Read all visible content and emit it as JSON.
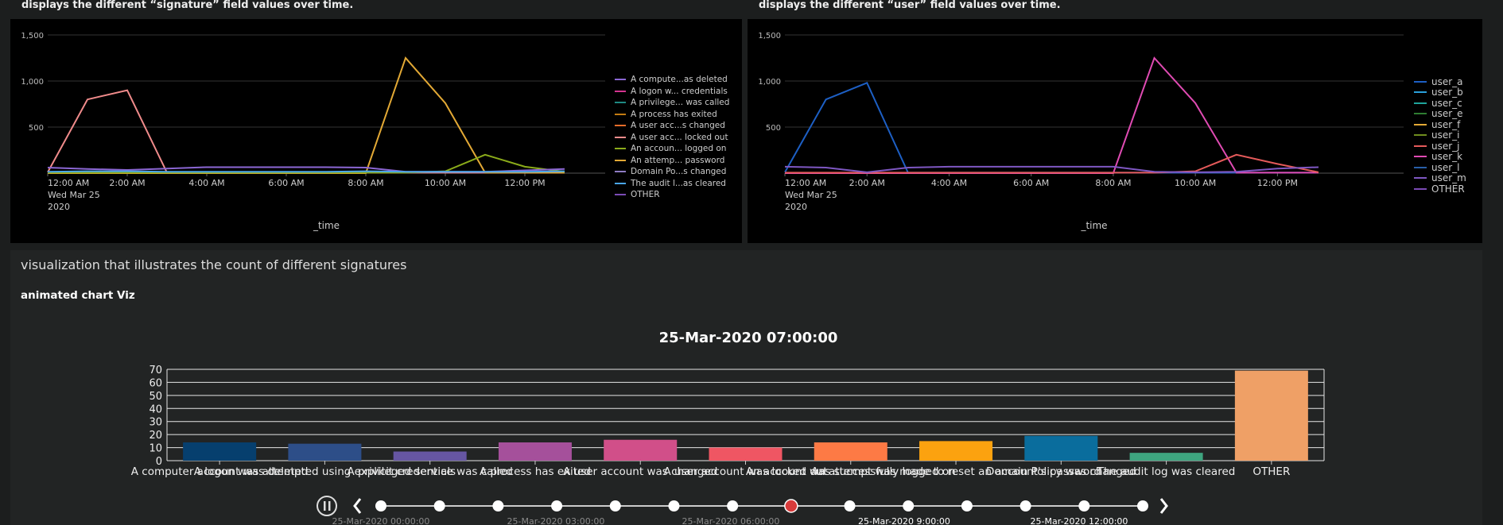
{
  "left_panel": {
    "header": "displays the different “signature” field values over time.",
    "legend": [
      {
        "label": "A compute...as deleted",
        "color": "#8b67d4"
      },
      {
        "label": "A logon w... credentials",
        "color": "#d4348f"
      },
      {
        "label": "A privilege... was called",
        "color": "#1e8a82"
      },
      {
        "label": "A process has exited",
        "color": "#c37c12"
      },
      {
        "label": "A user acc...s changed",
        "color": "#e66c29"
      },
      {
        "label": "A user acc... locked out",
        "color": "#f08b8b"
      },
      {
        "label": "An accoun... logged on",
        "color": "#8bab1a"
      },
      {
        "label": "An attemp... password",
        "color": "#e3a935"
      },
      {
        "label": "Domain Po...s changed",
        "color": "#8e7cc3"
      },
      {
        "label": "The audit l...as cleared",
        "color": "#4aa6e8"
      },
      {
        "label": "OTHER",
        "color": "#7b4bb5"
      }
    ]
  },
  "right_panel": {
    "header": "displays the different “user” field values over time.",
    "legend": [
      {
        "label": "user_a",
        "color": "#1d5fc4"
      },
      {
        "label": "user_b",
        "color": "#2aa0db"
      },
      {
        "label": "user_c",
        "color": "#1fa59c"
      },
      {
        "label": "user_e",
        "color": "#2f7d31"
      },
      {
        "label": "user_f",
        "color": "#e3a935"
      },
      {
        "label": "user_i",
        "color": "#6f8d1e"
      },
      {
        "label": "user_j",
        "color": "#e55a5a"
      },
      {
        "label": "user_k",
        "color": "#e04bb3"
      },
      {
        "label": "user_l",
        "color": "#285fa8"
      },
      {
        "label": "user_m",
        "color": "#7e57c2"
      },
      {
        "label": "OTHER",
        "color": "#7b4bb5"
      }
    ]
  },
  "bottom_panel": {
    "title": "visualization that illustrates the count of different signatures",
    "subtitle": "animated chart Viz",
    "timestamp": "25-Mar-2020 07:00:00",
    "timeline_labels": [
      "25-Mar-2020 00:00:00",
      "25-Mar-2020 03:00:00",
      "25-Mar-2020 06:00:00",
      "25-Mar-2020 9:00:00",
      "25-Mar-2020 12:00:00"
    ],
    "timeline_dot_count": 14,
    "timeline_active_index": 7
  },
  "colors": {
    "accent_red": "#d83b3b"
  },
  "chart_data": [
    {
      "type": "line",
      "x": [
        "12:00 AM",
        "1:00 AM",
        "2:00 AM",
        "3:00 AM",
        "4:00 AM",
        "5:00 AM",
        "6:00 AM",
        "7:00 AM",
        "8:00 AM",
        "9:00 AM",
        "10:00 AM",
        "11:00 AM",
        "12:00 PM",
        "1:00 PM"
      ],
      "x_ticks": [
        "12:00 AM",
        "2:00 AM",
        "4:00 AM",
        "6:00 AM",
        "8:00 AM",
        "10:00 AM",
        "12:00 PM"
      ],
      "x_sub": [
        "Wed Mar 25",
        "2020"
      ],
      "xlabel": "_time",
      "y_ticks": [
        "1,500",
        "1,000",
        "500"
      ],
      "ylim": [
        0,
        1500
      ],
      "series": [
        {
          "name": "A user acc... locked out",
          "values": [
            10,
            800,
            900,
            5,
            5,
            5,
            5,
            5,
            5,
            5,
            5,
            5,
            5,
            5
          ]
        },
        {
          "name": "An attemp... password",
          "values": [
            0,
            0,
            0,
            0,
            0,
            0,
            0,
            0,
            0,
            1250,
            760,
            5,
            5,
            5
          ]
        },
        {
          "name": "An accoun... logged on",
          "values": [
            5,
            5,
            5,
            5,
            5,
            5,
            5,
            5,
            5,
            5,
            20,
            200,
            70,
            15
          ]
        },
        {
          "name": "A compute...as deleted",
          "values": [
            60,
            45,
            35,
            50,
            65,
            65,
            65,
            65,
            60,
            15,
            15,
            15,
            30,
            45
          ]
        },
        {
          "name": "The audit l...as cleared",
          "values": [
            15,
            20,
            20,
            15,
            15,
            15,
            15,
            15,
            20,
            15,
            15,
            15,
            15,
            20
          ]
        }
      ]
    },
    {
      "type": "line",
      "x": [
        "12:00 AM",
        "1:00 AM",
        "2:00 AM",
        "3:00 AM",
        "4:00 AM",
        "5:00 AM",
        "6:00 AM",
        "7:00 AM",
        "8:00 AM",
        "9:00 AM",
        "10:00 AM",
        "11:00 AM",
        "12:00 PM",
        "1:00 PM"
      ],
      "x_ticks": [
        "12:00 AM",
        "2:00 AM",
        "4:00 AM",
        "6:00 AM",
        "8:00 AM",
        "10:00 AM",
        "12:00 PM"
      ],
      "x_sub": [
        "Wed Mar 25",
        "2020"
      ],
      "xlabel": "_time",
      "y_ticks": [
        "1,500",
        "1,000",
        "500"
      ],
      "ylim": [
        0,
        1500
      ],
      "series": [
        {
          "name": "user_a",
          "values": [
            10,
            800,
            980,
            5,
            5,
            5,
            5,
            5,
            5,
            5,
            5,
            5,
            5,
            5
          ]
        },
        {
          "name": "user_k",
          "values": [
            0,
            0,
            0,
            0,
            0,
            0,
            0,
            0,
            0,
            1250,
            760,
            5,
            5,
            5
          ]
        },
        {
          "name": "user_j",
          "values": [
            5,
            5,
            5,
            5,
            5,
            5,
            5,
            5,
            5,
            5,
            20,
            200,
            100,
            10
          ]
        },
        {
          "name": "user_m",
          "values": [
            70,
            60,
            10,
            60,
            70,
            70,
            70,
            70,
            70,
            15,
            10,
            15,
            50,
            65
          ]
        }
      ]
    },
    {
      "type": "bar",
      "title": "25-Mar-2020 07:00:00",
      "categories": [
        "A computer account was deleted",
        "A logon was attempted using explicit credentials",
        "A privileged service was called",
        "A process has exited",
        "A user account was changed",
        "A user account was locked out",
        "An account was successfully logged on",
        "An attempt was made to reset an account's password",
        "Domain Policy was changed",
        "The audit log was cleared",
        "OTHER"
      ],
      "values": [
        14,
        13,
        7,
        14,
        16,
        10,
        14,
        15,
        19,
        6,
        69
      ],
      "colors": [
        "#063f6e",
        "#2d4e88",
        "#6656a3",
        "#a5509b",
        "#d14f89",
        "#ef5663",
        "#fd7a45",
        "#fca20f",
        "#0a6d9d",
        "#3ea57f",
        "#efa066"
      ],
      "y_ticks": [
        0,
        10,
        20,
        30,
        40,
        50,
        60,
        70
      ],
      "ylim": [
        0,
        70
      ]
    }
  ]
}
